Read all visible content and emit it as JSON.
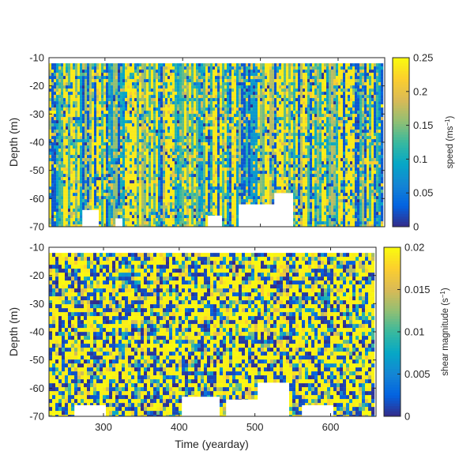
{
  "chart_data": [
    {
      "type": "heatmap",
      "title": "",
      "xlabel": "",
      "ylabel": "Depth (m)",
      "colorbar_label": "speed (ms",
      "colorbar_label_sup": "−1",
      "colorbar_label_end": ")",
      "xlim": [
        228,
        660
      ],
      "ylim": [
        -70,
        -10
      ],
      "clim": [
        0,
        0.25
      ],
      "x_ticks": [
        300,
        400,
        500,
        600
      ],
      "x_tick_labels": [
        "",
        "",
        "",
        ""
      ],
      "y_ticks": [
        -10,
        -20,
        -30,
        -40,
        -50,
        -60,
        -70
      ],
      "y_tick_labels": [
        "-10",
        "-20",
        "-30",
        "-40",
        "-50",
        "-60",
        "-70"
      ],
      "cb_ticks": [
        0,
        0.05,
        0.1,
        0.15,
        0.2,
        0.25
      ],
      "cb_tick_labels": [
        "0",
        "0.05",
        "0.1",
        "0.15",
        "0.2",
        "0.25"
      ],
      "depth_top": -12,
      "data_gaps": [
        {
          "x": [
            268,
            292
          ],
          "depth_below": -64
        },
        {
          "x": [
            312,
            322
          ],
          "depth_below": -67
        },
        {
          "x": [
            430,
            450
          ],
          "depth_below": -66
        },
        {
          "x": [
            470,
            540
          ],
          "depth_below": -62
        },
        {
          "x": [
            515,
            540
          ],
          "depth_below": -58
        }
      ],
      "colormap": "parula"
    },
    {
      "type": "heatmap",
      "title": "",
      "xlabel": "Time (yearday)",
      "ylabel": "Depth (m)",
      "colorbar_label": "shear magnitude (s",
      "colorbar_label_sup": "−1",
      "colorbar_label_end": ")",
      "xlim": [
        228,
        660
      ],
      "ylim": [
        -70,
        -10
      ],
      "clim": [
        0,
        0.02
      ],
      "x_ticks": [
        300,
        400,
        500,
        600
      ],
      "x_tick_labels": [
        "300",
        "400",
        "500",
        "600"
      ],
      "y_ticks": [
        -10,
        -20,
        -30,
        -40,
        -50,
        -60,
        -70
      ],
      "y_tick_labels": [
        "-10",
        "-20",
        "-30",
        "-40",
        "-50",
        "-60",
        "-70"
      ],
      "cb_ticks": [
        0,
        0.005,
        0.01,
        0.015,
        0.02
      ],
      "cb_tick_labels": [
        "0",
        "0.005",
        "0.01",
        "0.015",
        "0.02"
      ],
      "depth_top": -12,
      "data_gaps": [
        {
          "x": [
            260,
            300
          ],
          "depth_below": -66
        },
        {
          "x": [
            400,
            450
          ],
          "depth_below": -63
        },
        {
          "x": [
            460,
            510
          ],
          "depth_below": -64
        },
        {
          "x": [
            500,
            545
          ],
          "depth_below": -58
        },
        {
          "x": [
            560,
            600
          ],
          "depth_below": -66
        }
      ],
      "colormap": "parula"
    }
  ],
  "colors": {
    "parula_dark": "#352a87",
    "parula_blue": "#0f5cdd",
    "parula_teal": "#12b8b4",
    "parula_yellow": "#f9fb0e"
  }
}
